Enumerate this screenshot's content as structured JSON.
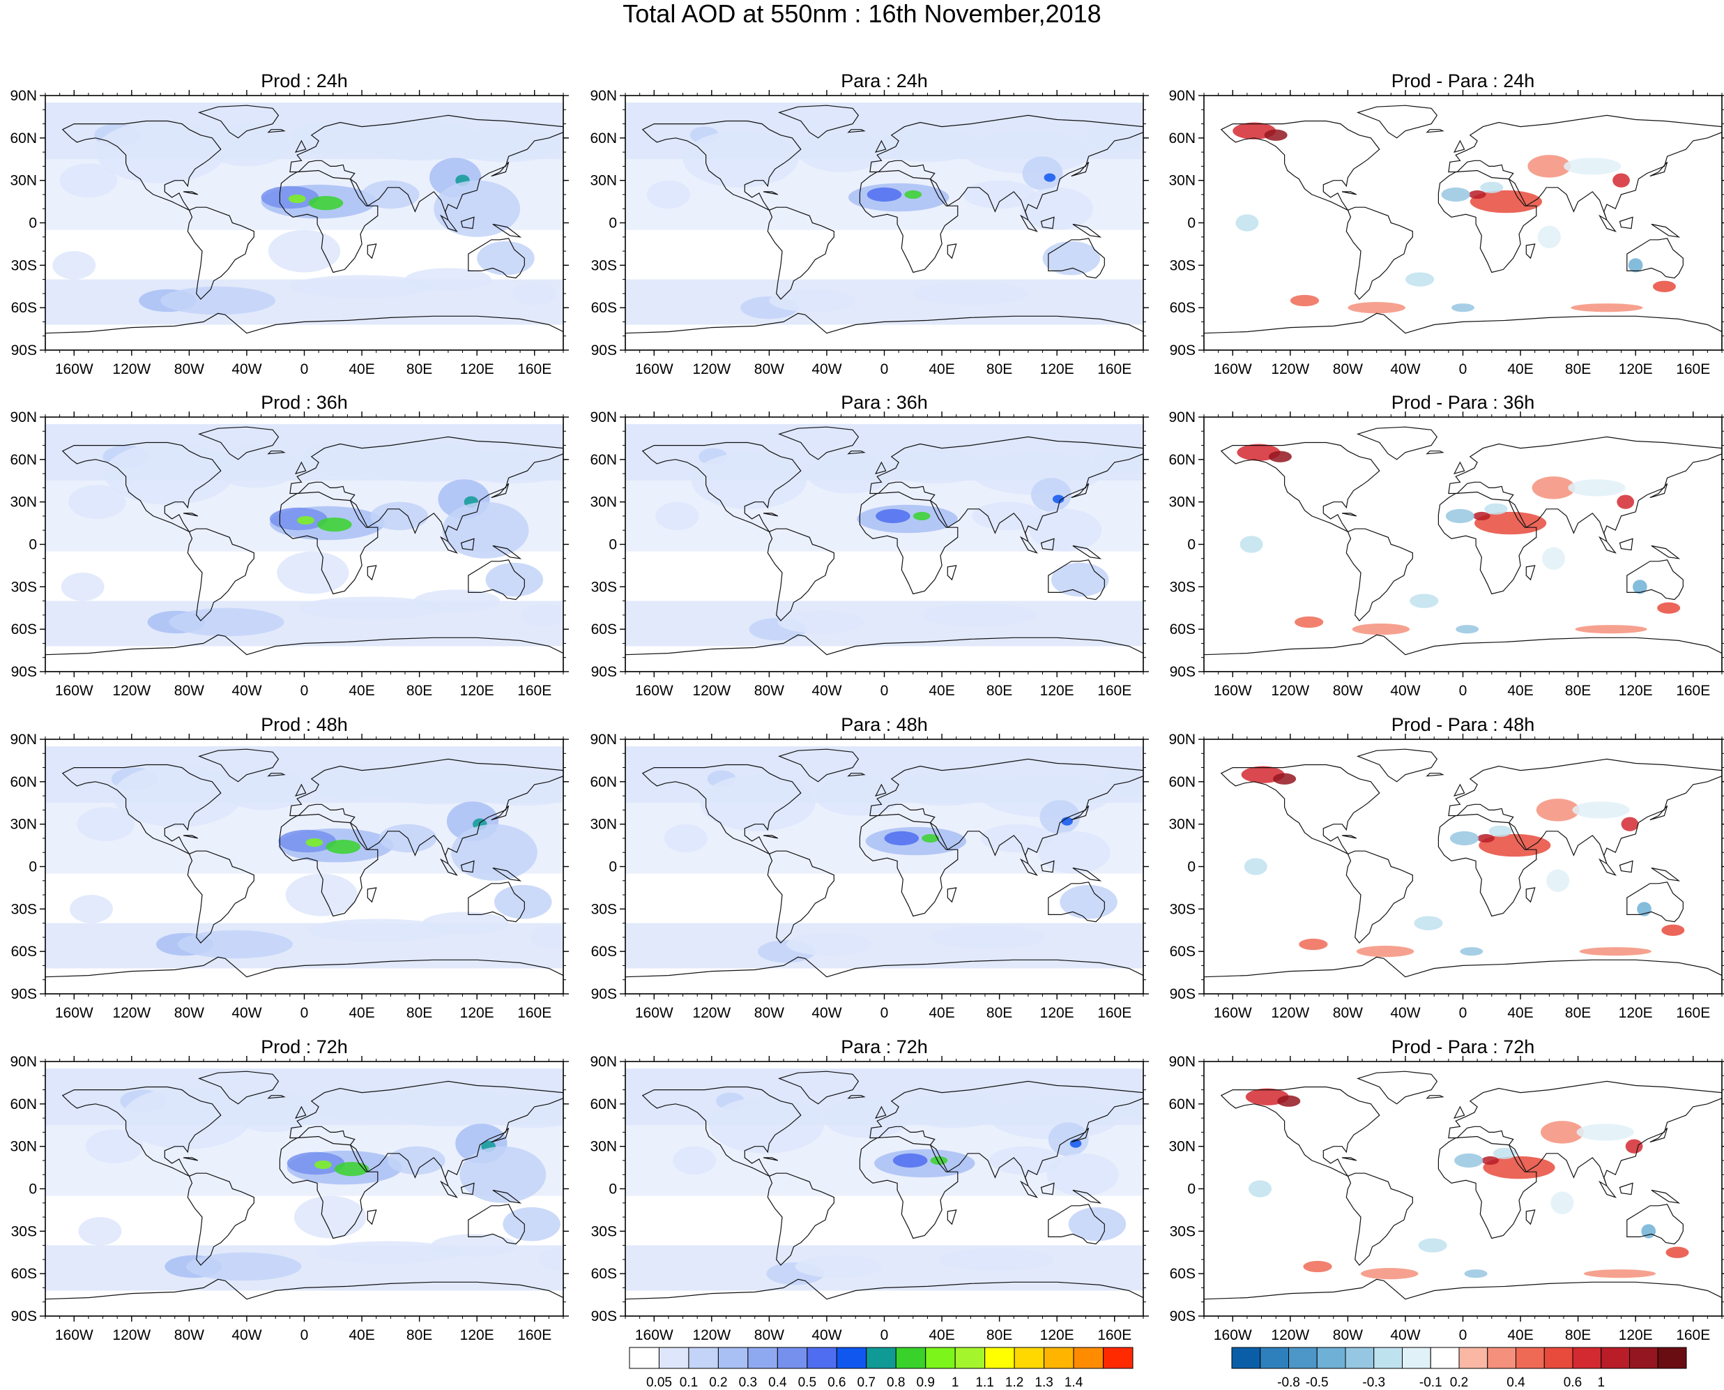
{
  "figure": {
    "title": "Total AOD at 550nm : 16th November,2018"
  },
  "panel_titles": [
    [
      "Prod : 24h",
      "Para : 24h",
      "Prod - Para : 24h"
    ],
    [
      "Prod : 36h",
      "Para : 36h",
      "Prod - Para : 36h"
    ],
    [
      "Prod : 48h",
      "Para : 48h",
      "Prod - Para : 48h"
    ],
    [
      "Prod : 72h",
      "Para : 72h",
      "Prod - Para : 72h"
    ]
  ],
  "lat_labels": [
    "90N",
    "60N",
    "30N",
    "0",
    "30S",
    "60S",
    "90S"
  ],
  "lon_labels": [
    "160W",
    "120W",
    "80W",
    "40W",
    "0",
    "40E",
    "80E",
    "120E",
    "160E"
  ],
  "colorbar_aod": {
    "labels": [
      "0.05",
      "0.1",
      "0.2",
      "0.3",
      "0.4",
      "0.5",
      "0.6",
      "0.7",
      "0.8",
      "0.9",
      "1",
      "1.1",
      "1.2",
      "1.3",
      "1.4"
    ],
    "colors": [
      "#ffffff",
      "#dde6fb",
      "#c3d4f8",
      "#a9c0f5",
      "#8fa9f1",
      "#7690ee",
      "#4f6df0",
      "#1057f0",
      "#0f9a96",
      "#38d22b",
      "#7cf51a",
      "#a5f52c",
      "#ffff00",
      "#ffd800",
      "#ffb500",
      "#ff8c00",
      "#ff2a00"
    ]
  },
  "colorbar_diff": {
    "labels": [
      "-0.8",
      "-0.5",
      "-0.3",
      "-0.1",
      "0.2",
      "0.4",
      "0.6",
      "1"
    ],
    "colors": [
      "#0a5ea8",
      "#2e80bd",
      "#4c96c8",
      "#6fb0d6",
      "#96c7e2",
      "#bfe2ef",
      "#e1f1f8",
      "#ffffff",
      "#f9b7a4",
      "#f4907b",
      "#ef6a55",
      "#e84a3c",
      "#d32930",
      "#b81d28",
      "#941620",
      "#6a0d12"
    ]
  }
}
